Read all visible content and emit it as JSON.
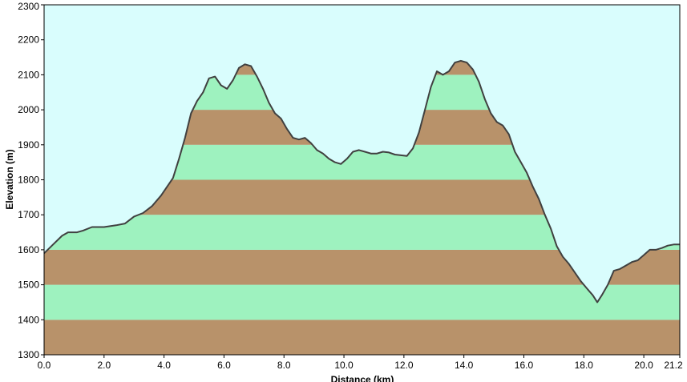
{
  "chart_data": {
    "type": "area",
    "xlabel": "Distance  (km)",
    "ylabel": "Elevation (m)",
    "xlim": [
      0,
      21.2
    ],
    "ylim": [
      1300,
      2300
    ],
    "x_ticks": [
      0,
      2,
      4,
      6,
      8,
      10,
      12,
      14,
      16,
      18,
      20,
      21.2
    ],
    "x_tick_labels": [
      "0.0",
      "2.0",
      "4.0",
      "6.0",
      "8.0",
      "10.0",
      "12.0",
      "14.0",
      "16.0",
      "18.0",
      "20.0",
      "21.2"
    ],
    "y_ticks": [
      1300,
      1400,
      1500,
      1600,
      1700,
      1800,
      1900,
      2000,
      2100,
      2200,
      2300
    ],
    "y_tick_labels": [
      "1300",
      "1400",
      "1500",
      "1600",
      "1700",
      "1800",
      "1900",
      "2000",
      "2100",
      "2200",
      "2300"
    ],
    "band_step": 100,
    "grid": false,
    "legend": "none",
    "colors": {
      "background": "#d9fdfd",
      "band_brown": "#b8926a",
      "band_green": "#9ef2bf",
      "line": "#404040",
      "axis": "#000000"
    },
    "x": [
      0,
      0.3,
      0.6,
      0.8,
      1.1,
      1.3,
      1.6,
      2.0,
      2.4,
      2.7,
      3.0,
      3.3,
      3.6,
      3.9,
      4.1,
      4.3,
      4.5,
      4.7,
      4.9,
      5.1,
      5.3,
      5.5,
      5.7,
      5.9,
      6.1,
      6.3,
      6.5,
      6.7,
      6.9,
      7.1,
      7.3,
      7.5,
      7.7,
      7.9,
      8.1,
      8.3,
      8.5,
      8.7,
      8.9,
      9.1,
      9.3,
      9.5,
      9.7,
      9.9,
      10.1,
      10.3,
      10.5,
      10.7,
      10.9,
      11.1,
      11.3,
      11.5,
      11.7,
      11.9,
      12.1,
      12.3,
      12.5,
      12.7,
      12.9,
      13.1,
      13.3,
      13.5,
      13.7,
      13.9,
      14.1,
      14.3,
      14.5,
      14.7,
      14.9,
      15.1,
      15.3,
      15.5,
      15.7,
      15.9,
      16.1,
      16.3,
      16.5,
      16.7,
      16.9,
      17.1,
      17.3,
      17.5,
      17.7,
      17.9,
      18.1,
      18.3,
      18.45,
      18.6,
      18.8,
      19.0,
      19.2,
      19.4,
      19.6,
      19.8,
      20.0,
      20.2,
      20.4,
      20.6,
      20.8,
      21.0,
      21.2
    ],
    "y": [
      1590,
      1615,
      1640,
      1650,
      1650,
      1655,
      1665,
      1665,
      1670,
      1675,
      1695,
      1705,
      1725,
      1755,
      1780,
      1805,
      1860,
      1920,
      1990,
      2025,
      2050,
      2090,
      2095,
      2070,
      2060,
      2085,
      2120,
      2130,
      2125,
      2095,
      2060,
      2020,
      1990,
      1975,
      1945,
      1920,
      1915,
      1920,
      1905,
      1885,
      1875,
      1860,
      1850,
      1845,
      1860,
      1880,
      1885,
      1880,
      1875,
      1875,
      1880,
      1878,
      1872,
      1870,
      1868,
      1890,
      1935,
      2000,
      2065,
      2110,
      2100,
      2110,
      2135,
      2140,
      2135,
      2115,
      2080,
      2030,
      1990,
      1965,
      1955,
      1930,
      1880,
      1850,
      1820,
      1780,
      1745,
      1700,
      1660,
      1610,
      1580,
      1560,
      1535,
      1510,
      1490,
      1470,
      1450,
      1470,
      1500,
      1540,
      1545,
      1555,
      1565,
      1570,
      1585,
      1600,
      1600,
      1605,
      1612,
      1615,
      1615
    ]
  }
}
